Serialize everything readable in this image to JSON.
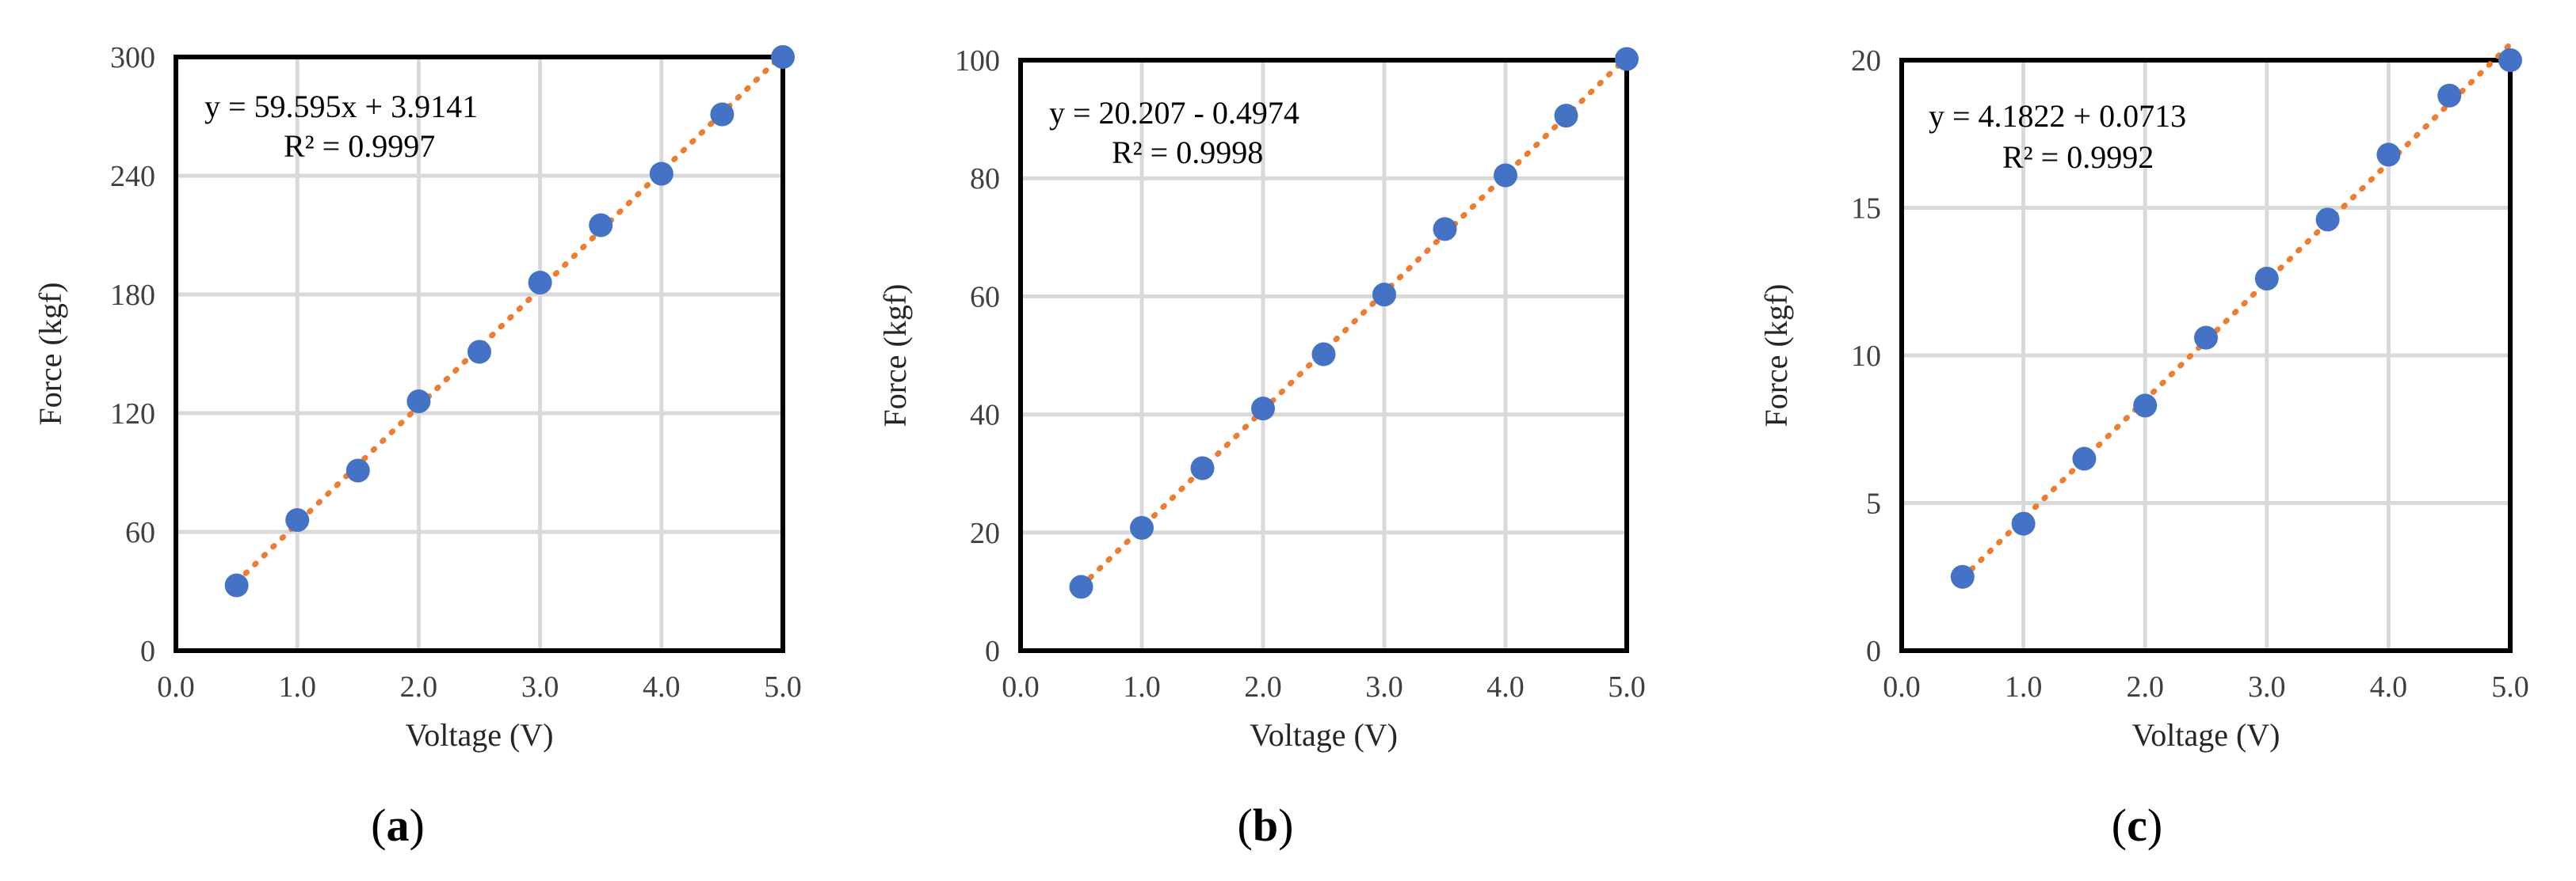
{
  "colors": {
    "marker": "#4472C4",
    "trendline": "#ED7D31",
    "grid": "#D9D9D9",
    "frame": "#000000"
  },
  "chart_data": [
    {
      "type": "scatter",
      "panel_label": "a",
      "xlabel": "Voltage (V)",
      "ylabel": "Force (kgf)",
      "xlim": [
        0,
        5
      ],
      "ylim": [
        0,
        300
      ],
      "xticks": [
        "0.0",
        "1.0",
        "2.0",
        "3.0",
        "4.0",
        "5.0"
      ],
      "yticks": [
        "0",
        "60",
        "120",
        "180",
        "240",
        "300"
      ],
      "grid": true,
      "trendline": "linear",
      "equation": "y = 59.595x + 3.9141",
      "r_squared": "R² = 0.9997",
      "x": [
        0.5,
        1.0,
        1.5,
        2.0,
        2.5,
        3.0,
        3.5,
        4.0,
        4.5,
        5.0
      ],
      "y": [
        33,
        66,
        91,
        126,
        151,
        186,
        215,
        241,
        271,
        300
      ]
    },
    {
      "type": "scatter",
      "panel_label": "b",
      "xlabel": "Voltage (V)",
      "ylabel": "Force (kgf)",
      "xlim": [
        0,
        5
      ],
      "ylim": [
        0,
        100
      ],
      "xticks": [
        "0.0",
        "1.0",
        "2.0",
        "3.0",
        "4.0",
        "5.0"
      ],
      "yticks": [
        "0",
        "20",
        "40",
        "60",
        "80",
        "100"
      ],
      "grid": true,
      "trendline": "linear",
      "equation": "y = 20.207 - 0.4974",
      "r_squared": "R² = 0.9998",
      "x": [
        0.5,
        1.0,
        1.5,
        2.0,
        2.5,
        3.0,
        3.5,
        4.0,
        4.5,
        5.0
      ],
      "y": [
        10.8,
        20.8,
        30.9,
        41.0,
        50.2,
        60.3,
        71.4,
        80.5,
        90.6,
        100.2
      ]
    },
    {
      "type": "scatter",
      "panel_label": "c",
      "xlabel": "Voltage (V)",
      "ylabel": "Force (kgf)",
      "xlim": [
        0,
        5
      ],
      "ylim": [
        0,
        20
      ],
      "xticks": [
        "0.0",
        "1.0",
        "2.0",
        "3.0",
        "4.0",
        "5.0"
      ],
      "yticks": [
        "0",
        "5",
        "10",
        "15",
        "20"
      ],
      "grid": true,
      "trendline": "linear",
      "equation": "y = 4.1822 + 0.0713",
      "r_squared": "R² = 0.9992",
      "x": [
        0.5,
        1.0,
        1.5,
        2.0,
        2.5,
        3.0,
        3.5,
        4.0,
        4.5,
        5.0
      ],
      "y": [
        2.5,
        4.3,
        6.5,
        8.3,
        10.6,
        12.6,
        14.6,
        16.8,
        18.8,
        20.0
      ]
    }
  ]
}
